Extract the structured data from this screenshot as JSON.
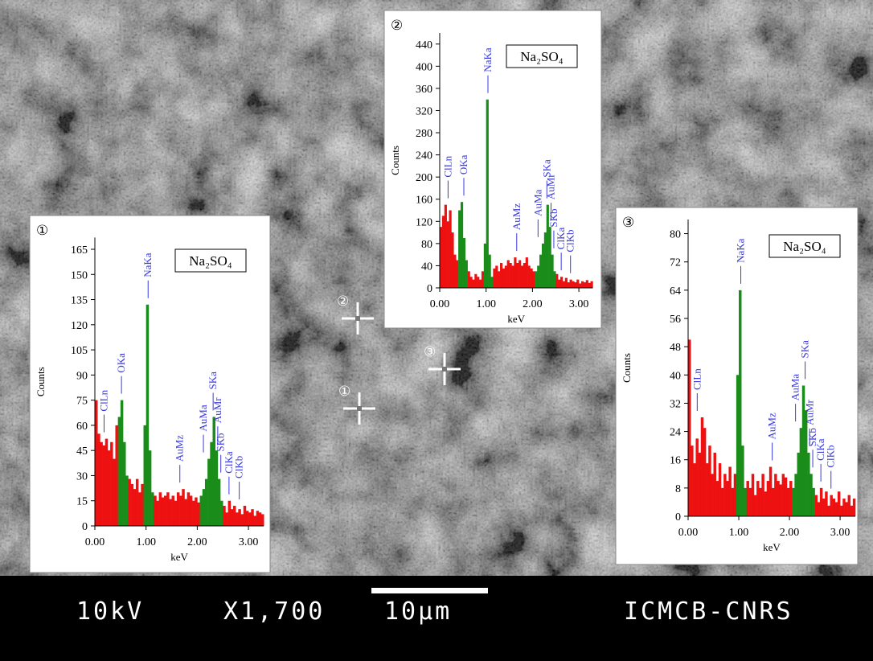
{
  "chart_data": [
    {
      "type": "bar",
      "title": "①",
      "label": "Na₂SO₄",
      "ylabel": "Counts",
      "xlabel": "keV",
      "xlim": [
        0,
        3.3
      ],
      "ylim": [
        0,
        172
      ],
      "xticks": [
        {
          "value": 0,
          "label": "0.00"
        },
        {
          "value": 1,
          "label": "1.00"
        },
        {
          "value": 2,
          "label": "2.00"
        },
        {
          "value": 3,
          "label": "3.00"
        }
      ],
      "yticks": [
        0,
        15,
        30,
        45,
        60,
        75,
        90,
        105,
        120,
        135,
        150,
        165
      ],
      "x": [
        0,
        0.05,
        0.1,
        0.15,
        0.2,
        0.25,
        0.3,
        0.35,
        0.4,
        0.45,
        0.5,
        0.55,
        0.6,
        0.65,
        0.7,
        0.75,
        0.8,
        0.85,
        0.9,
        0.95,
        1,
        1.05,
        1.1,
        1.15,
        1.2,
        1.25,
        1.3,
        1.35,
        1.4,
        1.45,
        1.5,
        1.55,
        1.6,
        1.65,
        1.7,
        1.75,
        1.8,
        1.85,
        1.9,
        1.95,
        2,
        2.05,
        2.1,
        2.15,
        2.2,
        2.25,
        2.3,
        2.35,
        2.4,
        2.45,
        2.5,
        2.55,
        2.6,
        2.65,
        2.7,
        2.75,
        2.8,
        2.85,
        2.9,
        2.95,
        3,
        3.05,
        3.1,
        3.15,
        3.2,
        3.25
      ],
      "series": [
        {
          "color": "#ee1111",
          "values": [
            75,
            55,
            50,
            48,
            52,
            45,
            50,
            40,
            60,
            null,
            null,
            null,
            null,
            28,
            25,
            22,
            28,
            20,
            25,
            null,
            null,
            null,
            null,
            18,
            15,
            20,
            17,
            18,
            20,
            16,
            18,
            15,
            20,
            18,
            22,
            16,
            20,
            18,
            15,
            17,
            14,
            null,
            null,
            null,
            null,
            null,
            null,
            null,
            null,
            null,
            12,
            8,
            15,
            10,
            12,
            8,
            10,
            7,
            12,
            9,
            8,
            10,
            6,
            9,
            8,
            7
          ]
        },
        {
          "color": "#1a8c1a",
          "values": [
            null,
            null,
            null,
            null,
            null,
            null,
            null,
            null,
            null,
            65,
            75,
            50,
            30,
            null,
            null,
            null,
            null,
            null,
            null,
            60,
            132,
            45,
            20,
            null,
            null,
            null,
            null,
            null,
            null,
            null,
            null,
            null,
            null,
            null,
            null,
            null,
            null,
            null,
            null,
            null,
            null,
            18,
            22,
            28,
            40,
            50,
            65,
            45,
            28,
            15,
            null,
            null,
            null,
            null,
            null,
            null,
            null,
            null,
            null,
            null,
            null,
            null,
            null,
            null,
            null,
            null
          ]
        }
      ],
      "annotations": [
        {
          "text": "ClLn",
          "x": 0.18
        },
        {
          "text": "OKa",
          "x": 0.52
        },
        {
          "text": "NaKa",
          "x": 1.04
        },
        {
          "text": "AuMz",
          "x": 1.66
        },
        {
          "text": "AuMa",
          "x": 2.12
        },
        {
          "text": "SKa",
          "x": 2.31
        },
        {
          "text": "AuMr",
          "x": 2.4
        },
        {
          "text": "SKb",
          "x": 2.46
        },
        {
          "text": "ClKa",
          "x": 2.62
        },
        {
          "text": "ClKb",
          "x": 2.82
        }
      ]
    },
    {
      "type": "bar",
      "title": "②",
      "label": "Na₂SO₄",
      "ylabel": "Counts",
      "xlabel": "keV",
      "xlim": [
        0,
        3.3
      ],
      "ylim": [
        0,
        460
      ],
      "xticks": [
        {
          "value": 0,
          "label": "0.00"
        },
        {
          "value": 1,
          "label": "1.00"
        },
        {
          "value": 2,
          "label": "2.00"
        },
        {
          "value": 3,
          "label": "3.00"
        }
      ],
      "yticks": [
        0,
        40,
        80,
        120,
        160,
        200,
        240,
        280,
        320,
        360,
        400,
        440
      ],
      "x": [
        0,
        0.05,
        0.1,
        0.15,
        0.2,
        0.25,
        0.3,
        0.35,
        0.4,
        0.45,
        0.5,
        0.55,
        0.6,
        0.65,
        0.7,
        0.75,
        0.8,
        0.85,
        0.9,
        0.95,
        1,
        1.05,
        1.1,
        1.15,
        1.2,
        1.25,
        1.3,
        1.35,
        1.4,
        1.45,
        1.5,
        1.55,
        1.6,
        1.65,
        1.7,
        1.75,
        1.8,
        1.85,
        1.9,
        1.95,
        2,
        2.05,
        2.1,
        2.15,
        2.2,
        2.25,
        2.3,
        2.35,
        2.4,
        2.45,
        2.5,
        2.55,
        2.6,
        2.65,
        2.7,
        2.75,
        2.8,
        2.85,
        2.9,
        2.95,
        3,
        3.05,
        3.1,
        3.15,
        3.2,
        3.25
      ],
      "series": [
        {
          "color": "#ee1111",
          "values": [
            110,
            130,
            150,
            120,
            140,
            100,
            60,
            50,
            null,
            null,
            null,
            null,
            30,
            20,
            15,
            25,
            20,
            15,
            30,
            null,
            null,
            null,
            null,
            35,
            40,
            30,
            45,
            35,
            40,
            50,
            45,
            40,
            55,
            45,
            50,
            40,
            45,
            55,
            40,
            35,
            30,
            null,
            null,
            null,
            null,
            null,
            null,
            null,
            null,
            null,
            25,
            15,
            20,
            12,
            18,
            10,
            15,
            12,
            10,
            15,
            8,
            12,
            10,
            14,
            9,
            12
          ]
        },
        {
          "color": "#1a8c1a",
          "values": [
            null,
            null,
            null,
            null,
            null,
            null,
            null,
            null,
            140,
            155,
            90,
            50,
            null,
            null,
            null,
            null,
            null,
            null,
            null,
            80,
            340,
            60,
            20,
            null,
            null,
            null,
            null,
            null,
            null,
            null,
            null,
            null,
            null,
            null,
            null,
            null,
            null,
            null,
            null,
            null,
            null,
            30,
            40,
            60,
            80,
            100,
            150,
            110,
            60,
            30,
            null,
            null,
            null,
            null,
            null,
            null,
            null,
            null,
            null,
            null,
            null,
            null,
            null,
            null,
            null,
            null
          ]
        }
      ],
      "annotations": [
        {
          "text": "ClLn",
          "x": 0.18
        },
        {
          "text": "OKa",
          "x": 0.52
        },
        {
          "text": "NaKa",
          "x": 1.04
        },
        {
          "text": "AuMz",
          "x": 1.66
        },
        {
          "text": "AuMa",
          "x": 2.12
        },
        {
          "text": "SKa",
          "x": 2.31
        },
        {
          "text": "AuMr",
          "x": 2.4
        },
        {
          "text": "SKb",
          "x": 2.46
        },
        {
          "text": "ClKa",
          "x": 2.62
        },
        {
          "text": "ClKb",
          "x": 2.82
        }
      ]
    },
    {
      "type": "bar",
      "title": "③",
      "label": "Na₂SO₄",
      "ylabel": "Counts",
      "xlabel": "keV",
      "xlim": [
        0,
        3.3
      ],
      "ylim": [
        0,
        84
      ],
      "xticks": [
        {
          "value": 0,
          "label": "0.00"
        },
        {
          "value": 1,
          "label": "1.00"
        },
        {
          "value": 2,
          "label": "2.00"
        },
        {
          "value": 3,
          "label": "3.00"
        }
      ],
      "yticks": [
        0,
        8,
        16,
        24,
        32,
        40,
        48,
        56,
        64,
        72,
        80
      ],
      "x": [
        0,
        0.05,
        0.1,
        0.15,
        0.2,
        0.25,
        0.3,
        0.35,
        0.4,
        0.45,
        0.5,
        0.55,
        0.6,
        0.65,
        0.7,
        0.75,
        0.8,
        0.85,
        0.9,
        0.95,
        1,
        1.05,
        1.1,
        1.15,
        1.2,
        1.25,
        1.3,
        1.35,
        1.4,
        1.45,
        1.5,
        1.55,
        1.6,
        1.65,
        1.7,
        1.75,
        1.8,
        1.85,
        1.9,
        1.95,
        2,
        2.05,
        2.1,
        2.15,
        2.2,
        2.25,
        2.3,
        2.35,
        2.4,
        2.45,
        2.5,
        2.55,
        2.6,
        2.65,
        2.7,
        2.75,
        2.8,
        2.85,
        2.9,
        2.95,
        3,
        3.05,
        3.1,
        3.15,
        3.2,
        3.25
      ],
      "series": [
        {
          "color": "#ee1111",
          "values": [
            50,
            20,
            15,
            22,
            18,
            28,
            25,
            15,
            20,
            12,
            18,
            10,
            15,
            8,
            12,
            10,
            14,
            8,
            12,
            null,
            null,
            null,
            null,
            10,
            8,
            12,
            6,
            10,
            8,
            12,
            7,
            10,
            14,
            8,
            12,
            10,
            9,
            12,
            11,
            8,
            10,
            null,
            null,
            null,
            null,
            null,
            null,
            null,
            null,
            null,
            6,
            4,
            8,
            5,
            7,
            3,
            6,
            5,
            4,
            7,
            3,
            5,
            4,
            6,
            3,
            5
          ]
        },
        {
          "color": "#1a8c1a",
          "values": [
            null,
            null,
            null,
            null,
            null,
            null,
            null,
            null,
            null,
            null,
            null,
            null,
            null,
            null,
            null,
            null,
            null,
            null,
            null,
            40,
            64,
            20,
            8,
            null,
            null,
            null,
            null,
            null,
            null,
            null,
            null,
            null,
            null,
            null,
            null,
            null,
            null,
            null,
            null,
            null,
            null,
            8,
            12,
            18,
            25,
            37,
            30,
            18,
            12,
            8,
            null,
            null,
            null,
            null,
            null,
            null,
            null,
            null,
            null,
            null,
            null,
            null,
            null,
            null,
            null,
            null
          ]
        }
      ],
      "annotations": [
        {
          "text": "ClLn",
          "x": 0.18
        },
        {
          "text": "NaKa",
          "x": 1.04
        },
        {
          "text": "AuMz",
          "x": 1.66
        },
        {
          "text": "AuMa",
          "x": 2.12
        },
        {
          "text": "SKa",
          "x": 2.31
        },
        {
          "text": "AuMr",
          "x": 2.4
        },
        {
          "text": "SKb",
          "x": 2.46
        },
        {
          "text": "ClKa",
          "x": 2.62
        },
        {
          "text": "ClKb",
          "x": 2.82
        }
      ]
    }
  ],
  "image_markers": [
    "②",
    "③",
    "①"
  ],
  "info_bar": {
    "voltage": "10kV",
    "magnification": "X1,700",
    "scale": "10µm",
    "lab": "ICMCB-CNRS"
  }
}
